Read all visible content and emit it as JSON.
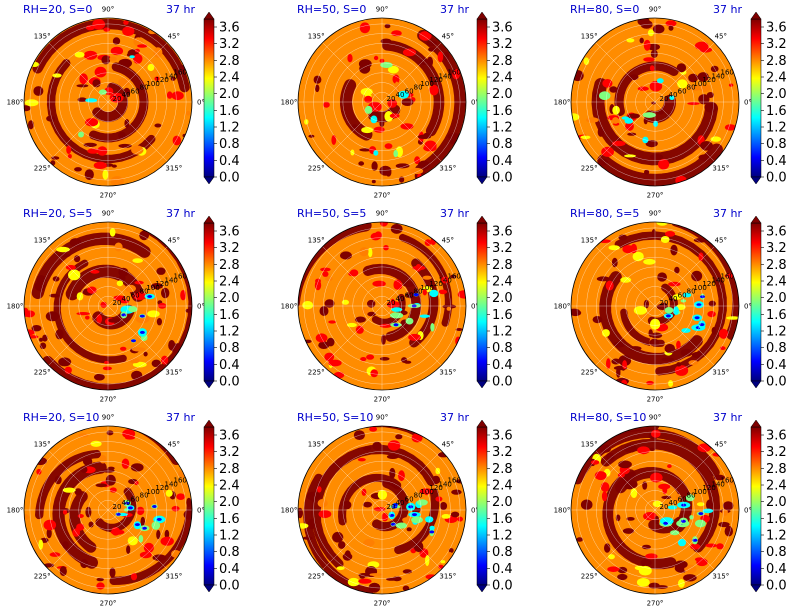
{
  "chart_data": {
    "type": "polar-filled-contour",
    "rows": [
      [
        {
          "title": "RH=20, S=0",
          "time": "37 hr"
        },
        {
          "title": "RH=50, S=0",
          "time": "37 hr"
        },
        {
          "title": "RH=80, S=0",
          "time": "37 hr"
        }
      ],
      [
        {
          "title": "RH=20, S=5",
          "time": "37 hr"
        },
        {
          "title": "RH=50, S=5",
          "time": "37 hr"
        },
        {
          "title": "RH=80, S=5",
          "time": "37 hr"
        }
      ],
      [
        {
          "title": "RH=20, S=10",
          "time": "37 hr"
        },
        {
          "title": "RH=50, S=10",
          "time": "37 hr"
        },
        {
          "title": "RH=80, S=10",
          "time": "37 hr"
        }
      ]
    ],
    "angular_ticks": [
      "0°",
      "45°",
      "90°",
      "135°",
      "180°",
      "225°",
      "270°",
      "315°"
    ],
    "radial_ticks": [
      "20",
      "40",
      "60",
      "80",
      "100",
      "120",
      "140",
      "160"
    ],
    "colorbar_ticks": [
      "0.0",
      "0.4",
      "0.8",
      "1.2",
      "1.6",
      "2.0",
      "2.4",
      "2.8",
      "3.2",
      "3.6"
    ],
    "colorbar_range": [
      0.0,
      3.6
    ],
    "colormap": [
      "#00007f",
      "#0000ff",
      "#007fff",
      "#00ffff",
      "#7fff7f",
      "#ffff00",
      "#ff7f00",
      "#ff0000",
      "#7f0000"
    ],
    "background_fill": "#ff8c00"
  }
}
